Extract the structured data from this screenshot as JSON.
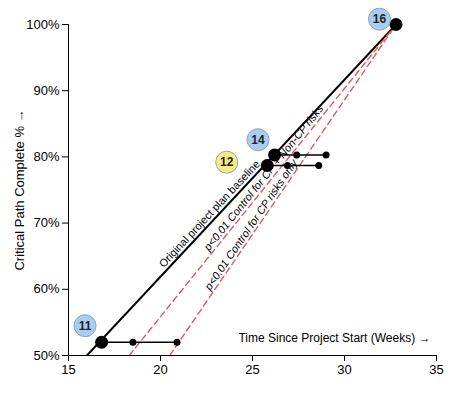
{
  "chart_data": {
    "type": "line",
    "x_label": "Time Since Project Start (Weeks) →",
    "y_label": "Critical Path Complete %",
    "xlim": [
      15,
      35
    ],
    "xticks": [
      15,
      20,
      25,
      30,
      35
    ],
    "ylim": [
      50,
      100
    ],
    "yticks": [
      {
        "value": 50,
        "label": "50%"
      },
      {
        "value": 60,
        "label": "60%"
      },
      {
        "value": 70,
        "label": "70%"
      },
      {
        "value": 80,
        "label": "80%"
      },
      {
        "value": 90,
        "label": "90%"
      },
      {
        "value": 100,
        "label": "100%"
      }
    ],
    "series": [
      {
        "name": "Original project plan baseline",
        "color": "#000000",
        "line_style": "solid",
        "x": [
          16.0,
          32.8
        ],
        "values": [
          50,
          100
        ]
      },
      {
        "name": "p<0.01 Control for CP + Non-CP risks",
        "color": "#e05a5a",
        "line_style": "dashed",
        "x": [
          18.3,
          32.8
        ],
        "values": [
          50,
          100
        ]
      },
      {
        "name": "p<0.01 Control for CP risks only",
        "color": "#e05a5a",
        "line_style": "dashed",
        "x": [
          20.5,
          32.8
        ],
        "values": [
          50,
          100
        ]
      }
    ],
    "points": {
      "x": [
        16.8,
        26.2,
        25.8,
        32.8
      ],
      "y": [
        52,
        80.3,
        78.7,
        100
      ],
      "color": "#000000"
    },
    "ranges": [
      {
        "y": 52,
        "x": [
          16.8,
          18.5,
          20.9
        ]
      },
      {
        "y": 80.3,
        "x": [
          26.2,
          27.4,
          29.0
        ]
      },
      {
        "y": 78.7,
        "x": [
          25.8,
          26.9,
          28.6
        ]
      }
    ],
    "milestones": [
      {
        "label": "11",
        "color": "#a8cdf0",
        "x": 15.9,
        "y": 54.5
      },
      {
        "label": "14",
        "color": "#a8cdf0",
        "x": 25.3,
        "y": 82.6
      },
      {
        "label": "12",
        "color": "#f6ec84",
        "x": 23.6,
        "y": 79.2
      },
      {
        "label": "16",
        "color": "#a8cdf0",
        "x": 31.9,
        "y": 100.8
      }
    ]
  }
}
